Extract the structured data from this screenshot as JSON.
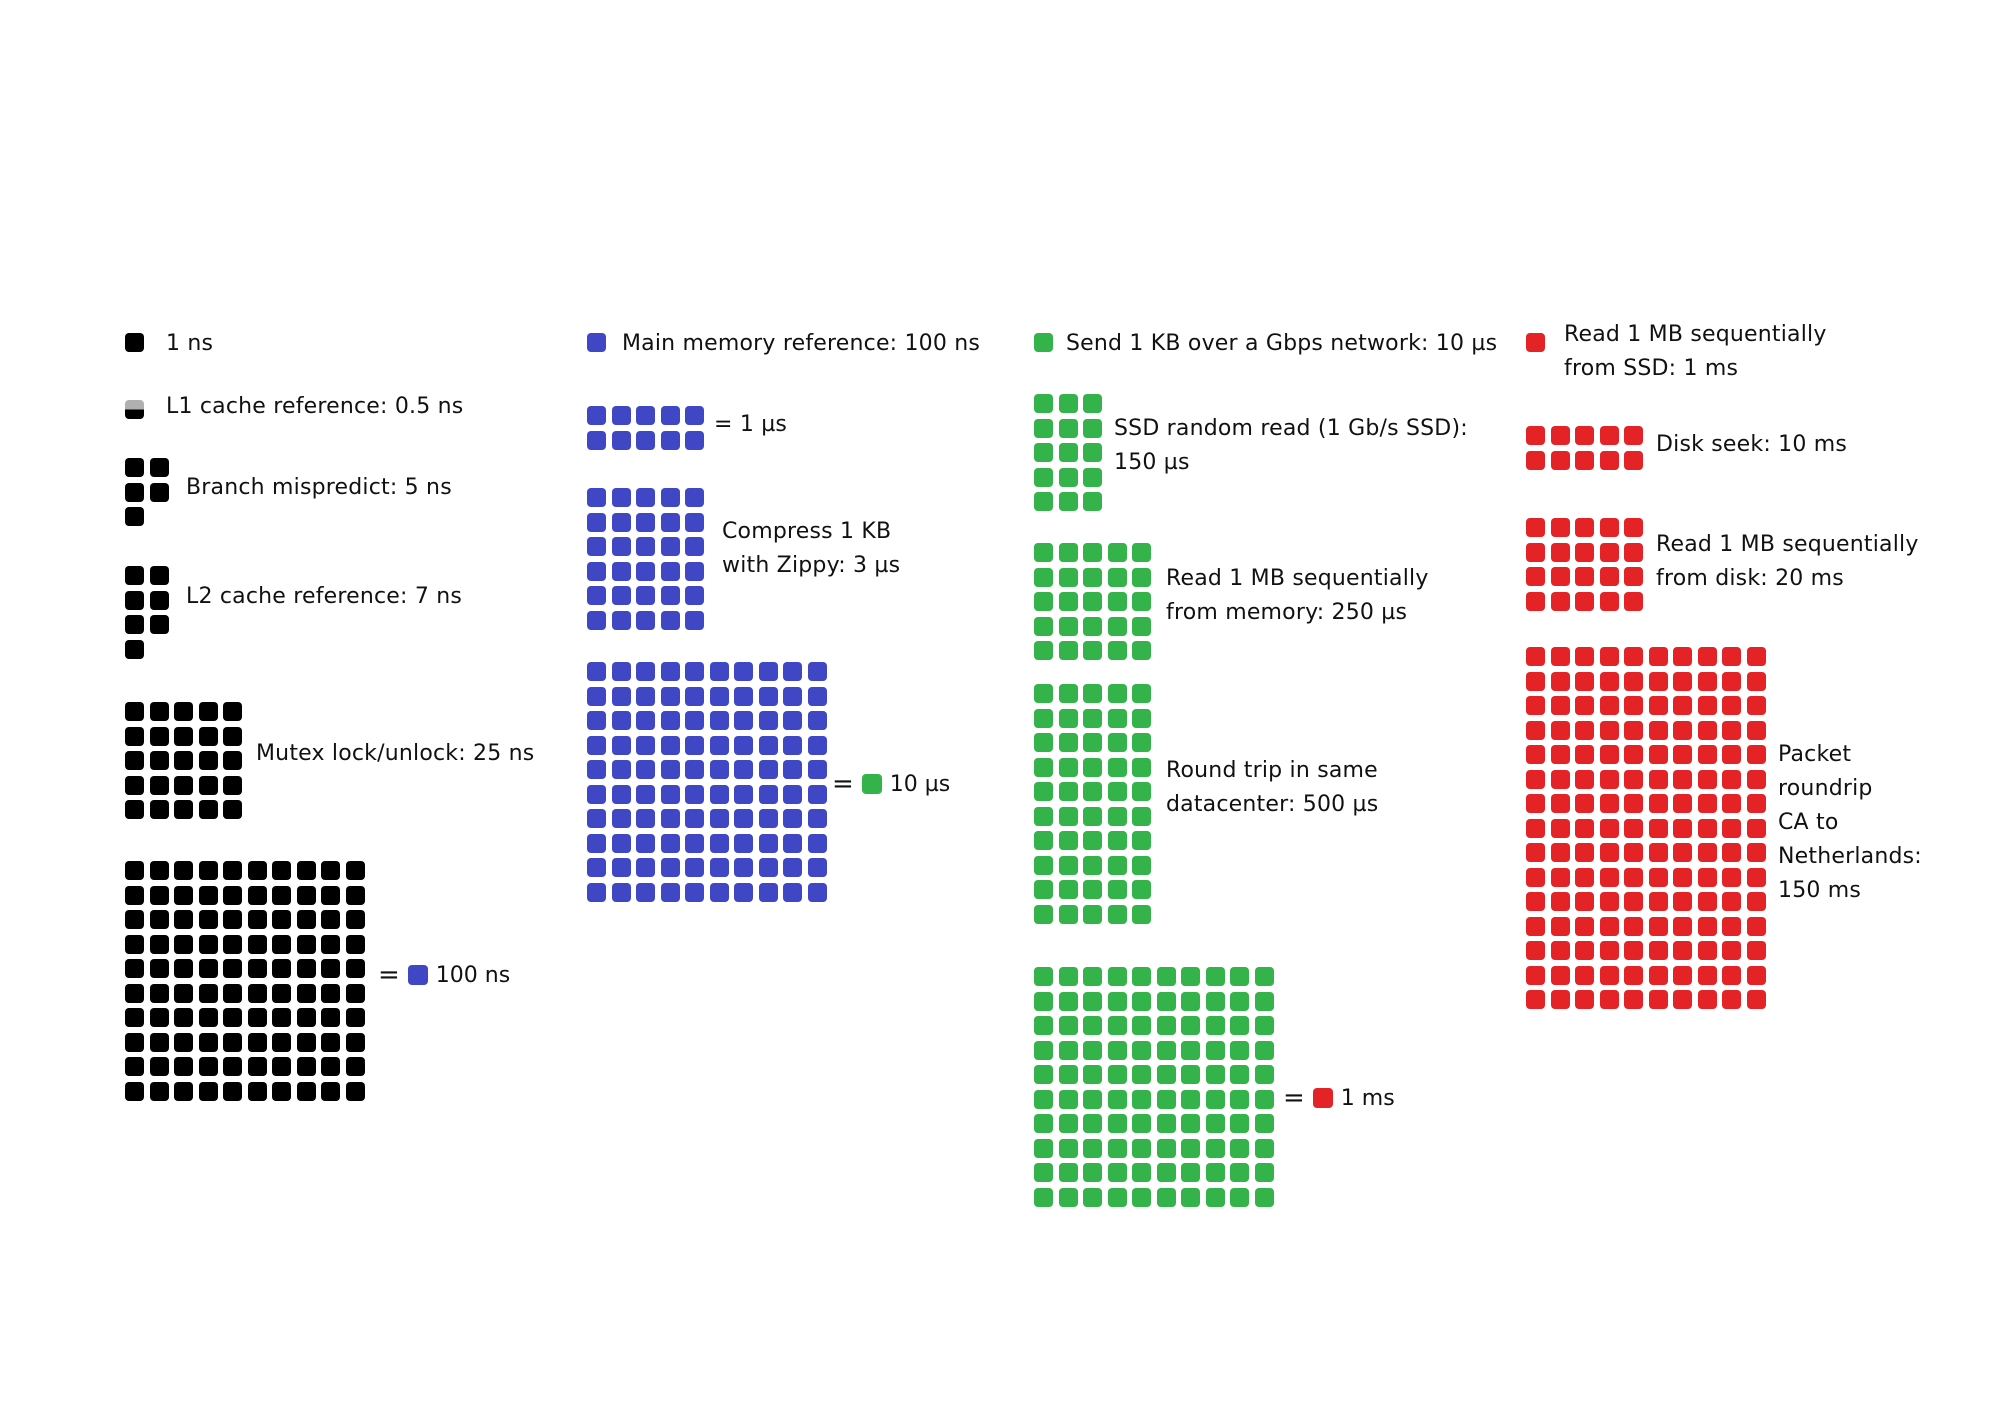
{
  "colors": {
    "ns": "#000000",
    "hundred_ns": "#4047c4",
    "ten_us": "#34b34a",
    "ms": "#e42327",
    "half": "#b0b0b0"
  },
  "column_ns": {
    "unit_label": "1 ns",
    "l1_label": "L1 cache reference: 0.5 ns",
    "branch_label": "Branch mispredict: 5 ns",
    "l2_label": "L2 cache reference:  7 ns",
    "mutex_label": "Mutex lock/unlock: 25 ns",
    "hundred_equals": "=",
    "hundred_label": "100 ns"
  },
  "column_100ns": {
    "unit_label": "Main memory reference: 100 ns",
    "one_us_label": "= 1 µs",
    "compress_line1": "Compress 1 KB",
    "compress_line2": "with Zippy: 3 µs",
    "ten_us_equals": "=",
    "ten_us_label": "10 µs"
  },
  "column_10us": {
    "unit_label": "Send 1 KB over a Gbps network: 10 µs",
    "ssd_line1": "SSD random read (1 Gb/s SSD):",
    "ssd_line2": "150 µs",
    "readmem_line1": "Read 1 MB sequentially",
    "readmem_line2": "from memory: 250 µs",
    "roundtrip_line1": "Round trip in same",
    "roundtrip_line2": "datacenter: 500 µs",
    "ms_equals": "=",
    "ms_label": "1 ms"
  },
  "column_ms": {
    "unit_line1": "Read 1 MB sequentially",
    "unit_line2": "from SSD: 1 ms",
    "disk_seek_label": "Disk seek: 10 ms",
    "readdisk_line1": "Read 1 MB sequentially",
    "readdisk_line2": "from disk: 20 ms",
    "packet_line1": "Packet",
    "packet_line2": "roundrip",
    "packet_line3": "CA to",
    "packet_line4": "Netherlands:",
    "packet_line5": "150 ms"
  },
  "block_counts": {
    "unit": 1,
    "l1": 0.5,
    "branch": 5,
    "l2": 7,
    "mutex": 25,
    "ns_hundred": 100,
    "one_us": 10,
    "compress": 30,
    "ten_us": 100,
    "ssd_random": 15,
    "read_mem": 25,
    "roundtrip": 50,
    "one_ms": 100,
    "disk_seek": 10,
    "read_disk": 20,
    "packet": 150
  }
}
